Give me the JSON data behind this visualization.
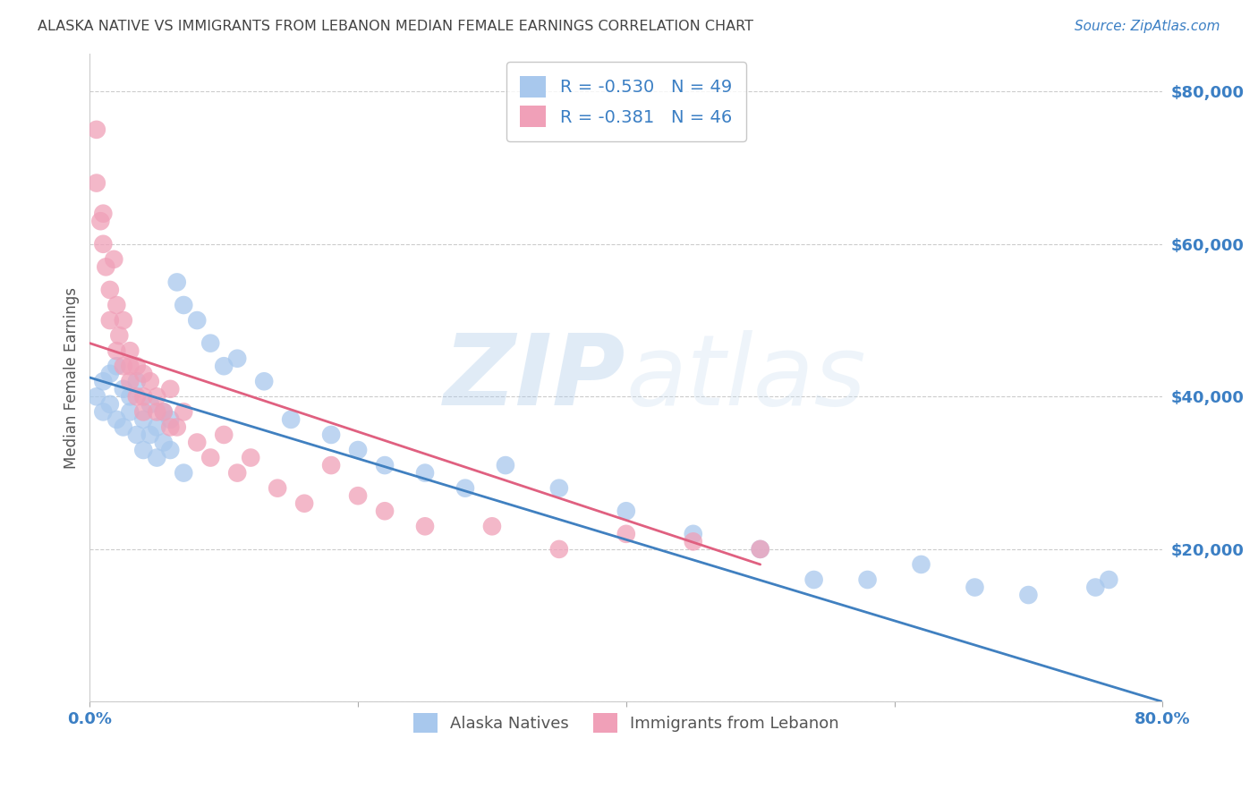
{
  "title": "ALASKA NATIVE VS IMMIGRANTS FROM LEBANON MEDIAN FEMALE EARNINGS CORRELATION CHART",
  "source": "Source: ZipAtlas.com",
  "ylabel": "Median Female Earnings",
  "watermark": "ZIPatlas",
  "xlim": [
    0.0,
    0.8
  ],
  "ylim": [
    0,
    85000
  ],
  "yticks": [
    0,
    20000,
    40000,
    60000,
    80000
  ],
  "ytick_labels": [
    "",
    "$20,000",
    "$40,000",
    "$60,000",
    "$80,000"
  ],
  "xtick_labels": [
    "0.0%",
    "",
    "",
    "",
    "80.0%"
  ],
  "legend_blue_label": "R = -0.530   N = 49",
  "legend_pink_label": "R = -0.381   N = 46",
  "legend_bottom_label1": "Alaska Natives",
  "legend_bottom_label2": "Immigrants from Lebanon",
  "blue_color": "#A8C8ED",
  "pink_color": "#F0A0B8",
  "blue_line_color": "#4080C0",
  "pink_line_color": "#E06080",
  "background_color": "#FFFFFF",
  "grid_color": "#CCCCCC",
  "title_color": "#444444",
  "axis_label_color": "#555555",
  "tick_label_color": "#3B7FC4",
  "blue_scatter_x": [
    0.005,
    0.01,
    0.01,
    0.015,
    0.015,
    0.02,
    0.02,
    0.025,
    0.025,
    0.03,
    0.03,
    0.035,
    0.035,
    0.04,
    0.04,
    0.045,
    0.045,
    0.05,
    0.05,
    0.055,
    0.055,
    0.06,
    0.06,
    0.065,
    0.07,
    0.08,
    0.09,
    0.1,
    0.11,
    0.15,
    0.18,
    0.2,
    0.22,
    0.25,
    0.28,
    0.31,
    0.35,
    0.4,
    0.45,
    0.5,
    0.54,
    0.58,
    0.62,
    0.66,
    0.7,
    0.75,
    0.76,
    0.07,
    0.13
  ],
  "blue_scatter_y": [
    40000,
    38000,
    42000,
    39000,
    43000,
    37000,
    44000,
    41000,
    36000,
    40000,
    38000,
    35000,
    42000,
    37000,
    33000,
    39000,
    35000,
    36000,
    32000,
    38000,
    34000,
    37000,
    33000,
    55000,
    52000,
    50000,
    47000,
    44000,
    45000,
    37000,
    35000,
    33000,
    31000,
    30000,
    28000,
    31000,
    28000,
    25000,
    22000,
    20000,
    16000,
    16000,
    18000,
    15000,
    14000,
    15000,
    16000,
    30000,
    42000
  ],
  "pink_scatter_x": [
    0.005,
    0.005,
    0.008,
    0.01,
    0.01,
    0.012,
    0.015,
    0.015,
    0.018,
    0.02,
    0.02,
    0.022,
    0.025,
    0.025,
    0.03,
    0.03,
    0.035,
    0.035,
    0.04,
    0.04,
    0.045,
    0.05,
    0.055,
    0.06,
    0.065,
    0.07,
    0.08,
    0.09,
    0.1,
    0.11,
    0.12,
    0.14,
    0.16,
    0.18,
    0.2,
    0.22,
    0.25,
    0.3,
    0.35,
    0.4,
    0.45,
    0.5,
    0.03,
    0.04,
    0.05,
    0.06
  ],
  "pink_scatter_y": [
    75000,
    68000,
    63000,
    60000,
    64000,
    57000,
    54000,
    50000,
    58000,
    46000,
    52000,
    48000,
    44000,
    50000,
    46000,
    42000,
    44000,
    40000,
    43000,
    38000,
    42000,
    40000,
    38000,
    41000,
    36000,
    38000,
    34000,
    32000,
    35000,
    30000,
    32000,
    28000,
    26000,
    31000,
    27000,
    25000,
    23000,
    23000,
    20000,
    22000,
    21000,
    20000,
    44000,
    40000,
    38000,
    36000
  ],
  "blue_line_x0": 0.0,
  "blue_line_y0": 42500,
  "blue_line_x1": 0.8,
  "blue_line_y1": 0,
  "pink_line_x0": 0.0,
  "pink_line_y0": 47000,
  "pink_line_x1": 0.5,
  "pink_line_y1": 18000
}
